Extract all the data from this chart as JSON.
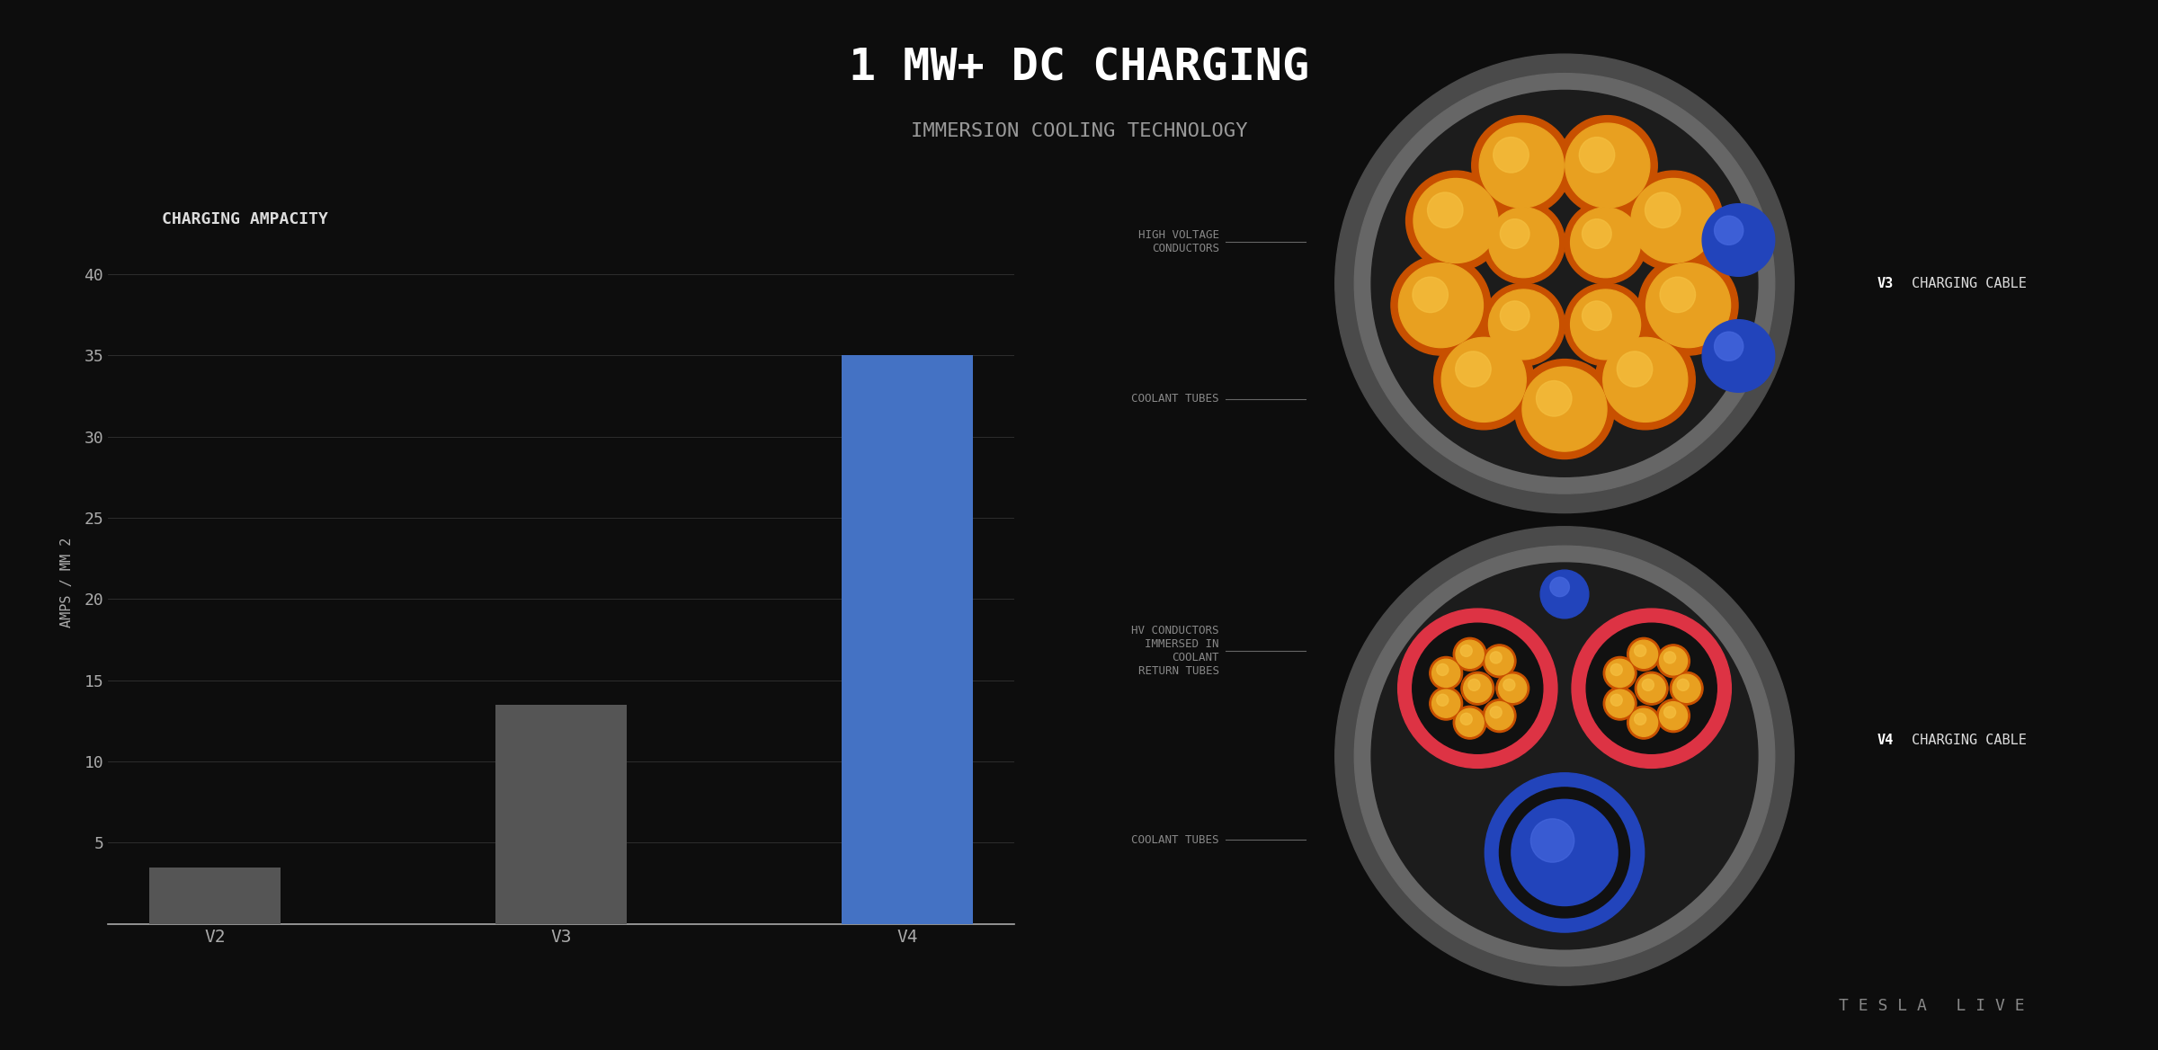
{
  "title_line1": "1 MW+ DC CHARGING",
  "title_line2": "IMMERSION COOLING TECHNOLOGY",
  "chart_title": "CHARGING AMPACITY",
  "ylabel": "AMPS / MM 2",
  "categories": [
    "V2",
    "V3",
    "V4"
  ],
  "values": [
    3.5,
    13.5,
    35.0
  ],
  "bar_colors": [
    "#555555",
    "#555555",
    "#4472c4"
  ],
  "ylim": [
    0,
    42
  ],
  "yticks": [
    5,
    10,
    15,
    20,
    25,
    30,
    35,
    40
  ],
  "background_color": "#0d0d0d",
  "text_color": "#cccccc",
  "grid_color": "#333333",
  "title_color": "#ffffff",
  "subtitle_color": "#999999",
  "chart_title_color": "#dddddd",
  "ylabel_color": "#aaaaaa",
  "tick_color": "#aaaaaa",
  "axline_color": "#aaaaaa",
  "tesla_live_color": "#888888",
  "annotation_color": "#888888",
  "v3_cable_label_bold": "V3",
  "v3_cable_label_rest": " CHARGING CABLE",
  "v4_cable_label_bold": "V4",
  "v4_cable_label_rest": " CHARGING CABLE",
  "hv_conductors_label": "HIGH VOLTAGE\nCONDUCTORS",
  "coolant_tubes_label_top": "COOLANT TUBES",
  "hv_immersed_label": "HV CONDUCTORS\nIMMERSED IN\nCOOLANT\nRETURN TUBES",
  "coolant_tubes_label_bot": "COOLANT TUBES"
}
